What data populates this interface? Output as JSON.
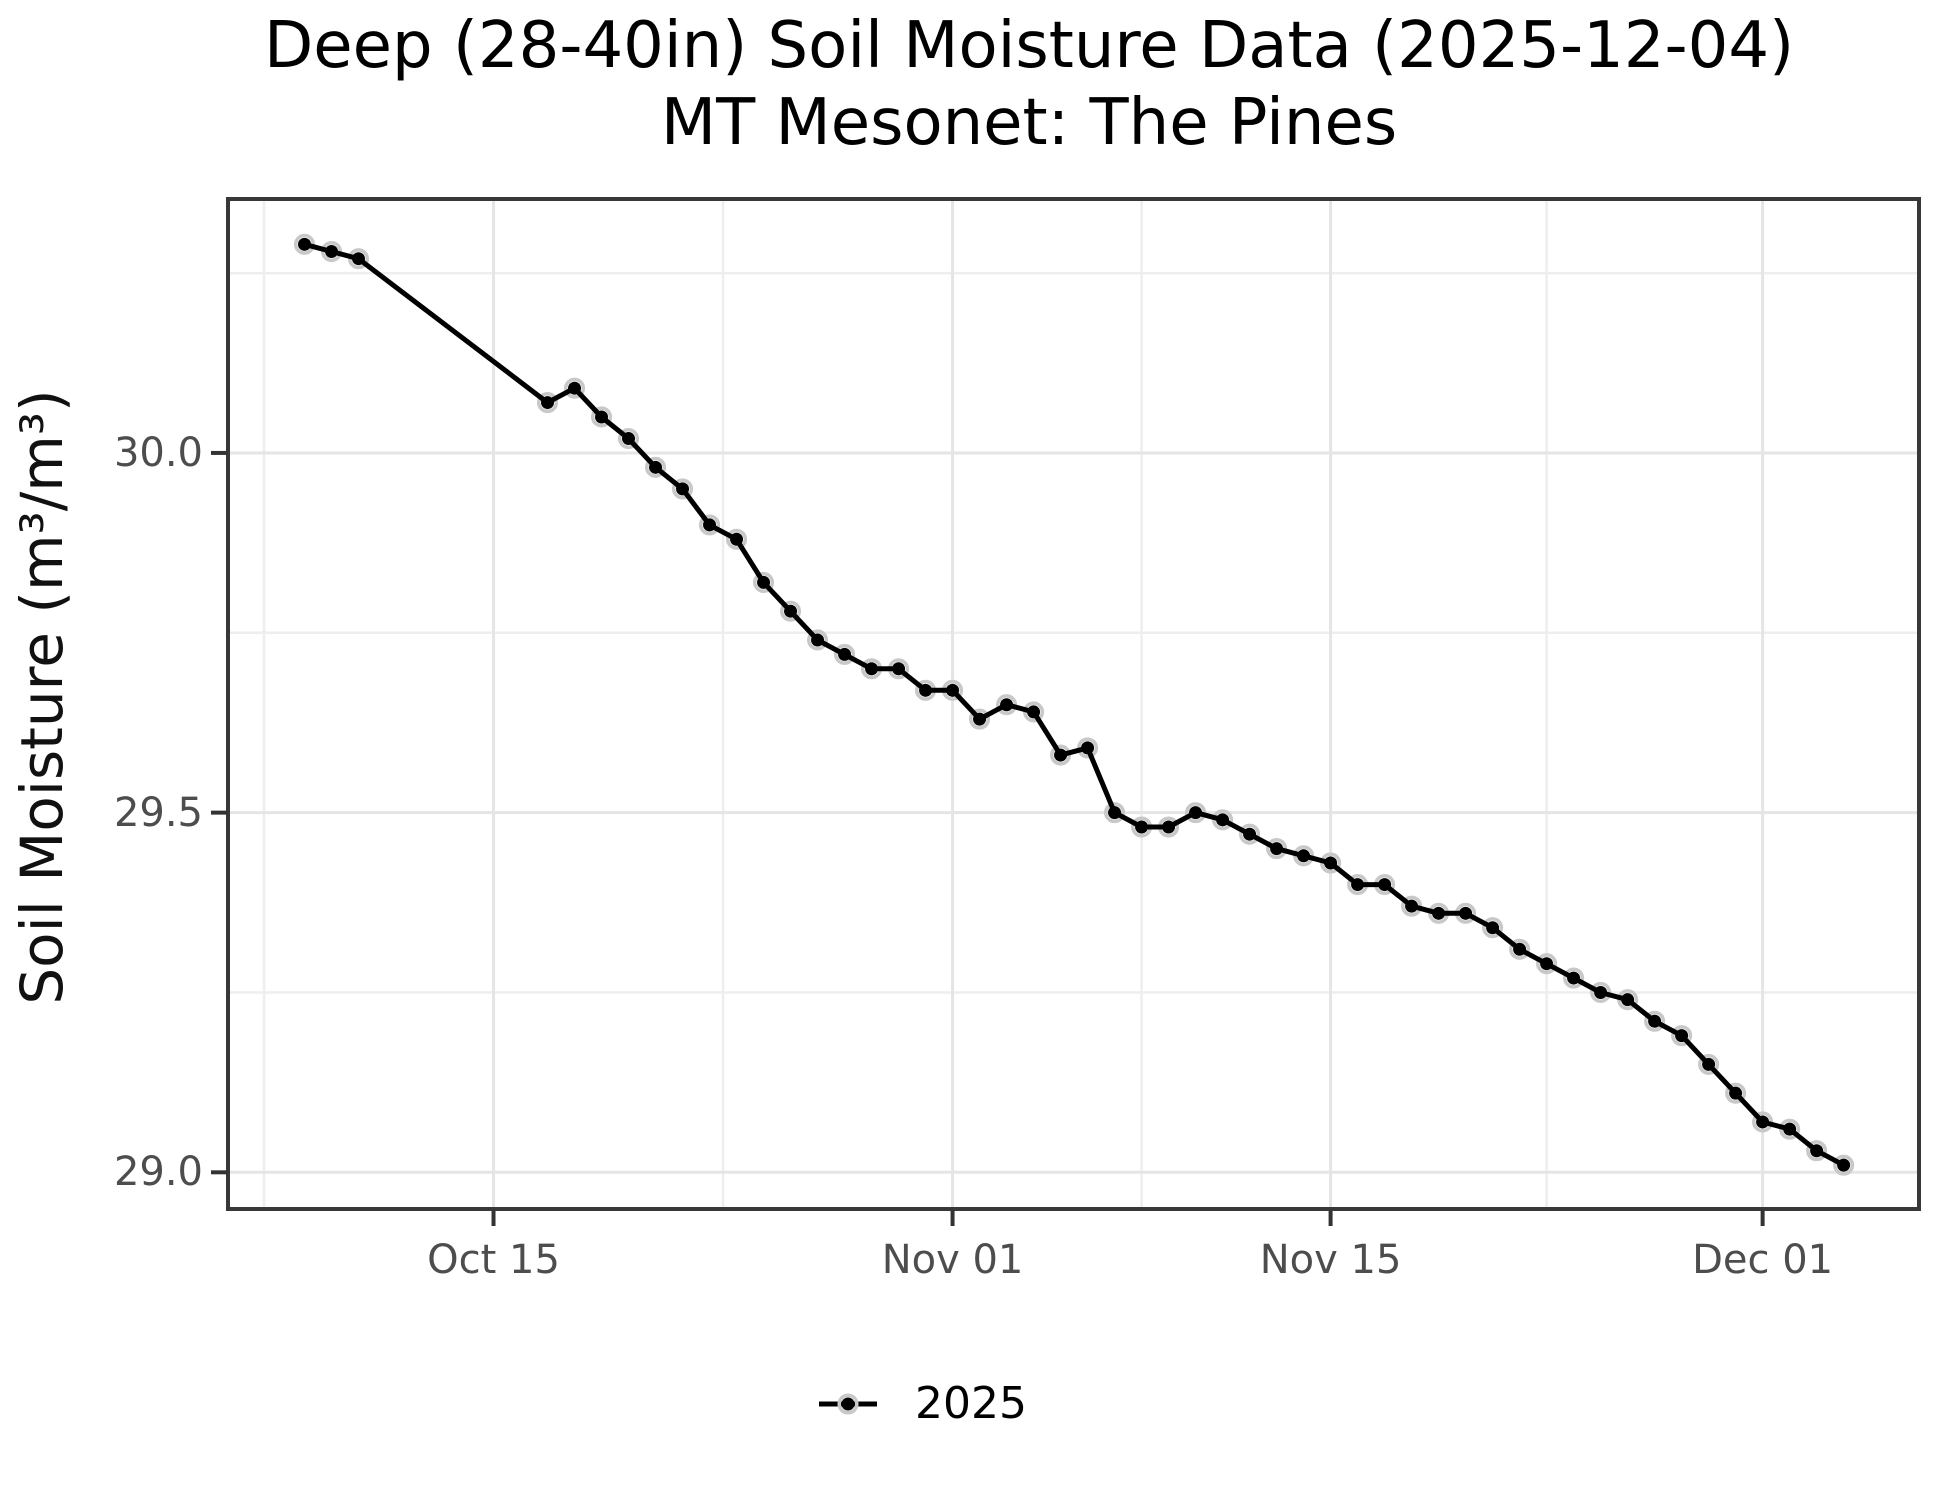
{
  "title": {
    "line1": "Deep (28-40in) Soil Moisture Data (2025-12-04)",
    "line2": "MT Mesonet: The Pines"
  },
  "legend": {
    "label": "2025"
  },
  "colors": {
    "line": "#000000",
    "point": "#000000",
    "point_halo": "#c8c8c8",
    "grid_major": "#e5e5e5",
    "grid_minor": "#eeeeee",
    "panel_border": "#383838",
    "tick_mark": "#333333",
    "tick_text": "#4d4d4d",
    "title_text": "#000000",
    "background": "#ffffff"
  },
  "chart_data": {
    "type": "line",
    "title": "Deep (28-40in) Soil Moisture Data (2025-12-04)",
    "subtitle": "MT Mesonet: The Pines",
    "xlabel": "",
    "ylabel": "Soil Moisture (m³/m³)",
    "legend_position": "bottom",
    "grid": true,
    "y_domain": [
      28.949,
      30.353
    ],
    "x_domain": [
      "2025-10-05T04:00:00Z",
      "2025-12-06T19:00:00Z"
    ],
    "y_ticks": [
      {
        "value": 30.0,
        "label": "30.0"
      },
      {
        "value": 29.5,
        "label": "29.5"
      },
      {
        "value": 29.0,
        "label": "29.0"
      }
    ],
    "y_minor": [
      30.25,
      29.75,
      29.25
    ],
    "x_ticks": [
      {
        "date": "2025-10-15",
        "label": "Oct 15"
      },
      {
        "date": "2025-11-01",
        "label": "Nov 01"
      },
      {
        "date": "2025-11-15",
        "label": "Nov 15"
      },
      {
        "date": "2025-12-01",
        "label": "Dec 01"
      }
    ],
    "x_minor": [
      "2025-10-06T12:00:00Z",
      "2025-10-23T12:00:00Z",
      "2025-11-08T00:00:00Z",
      "2025-11-23T00:00:00Z"
    ],
    "series": [
      {
        "name": "2025",
        "points": [
          [
            "2025-10-08",
            30.29
          ],
          [
            "2025-10-09",
            30.28
          ],
          [
            "2025-10-10",
            30.27
          ],
          [
            "2025-10-17",
            30.07
          ],
          [
            "2025-10-18",
            30.09
          ],
          [
            "2025-10-19",
            30.05
          ],
          [
            "2025-10-20",
            30.02
          ],
          [
            "2025-10-21",
            29.98
          ],
          [
            "2025-10-22",
            29.95
          ],
          [
            "2025-10-23",
            29.9
          ],
          [
            "2025-10-24",
            29.88
          ],
          [
            "2025-10-25",
            29.82
          ],
          [
            "2025-10-26",
            29.78
          ],
          [
            "2025-10-27",
            29.74
          ],
          [
            "2025-10-28",
            29.72
          ],
          [
            "2025-10-29",
            29.7
          ],
          [
            "2025-10-30",
            29.7
          ],
          [
            "2025-10-31",
            29.67
          ],
          [
            "2025-11-01",
            29.67
          ],
          [
            "2025-11-02",
            29.63
          ],
          [
            "2025-11-03",
            29.65
          ],
          [
            "2025-11-04",
            29.64
          ],
          [
            "2025-11-05",
            29.58
          ],
          [
            "2025-11-06",
            29.59
          ],
          [
            "2025-11-07",
            29.5
          ],
          [
            "2025-11-08",
            29.48
          ],
          [
            "2025-11-09",
            29.48
          ],
          [
            "2025-11-10",
            29.5
          ],
          [
            "2025-11-11",
            29.49
          ],
          [
            "2025-11-12",
            29.47
          ],
          [
            "2025-11-13",
            29.45
          ],
          [
            "2025-11-14",
            29.44
          ],
          [
            "2025-11-15",
            29.43
          ],
          [
            "2025-11-16",
            29.4
          ],
          [
            "2025-11-17",
            29.4
          ],
          [
            "2025-11-18",
            29.37
          ],
          [
            "2025-11-19",
            29.36
          ],
          [
            "2025-11-20",
            29.36
          ],
          [
            "2025-11-21",
            29.34
          ],
          [
            "2025-11-22",
            29.31
          ],
          [
            "2025-11-23",
            29.29
          ],
          [
            "2025-11-24",
            29.27
          ],
          [
            "2025-11-25",
            29.25
          ],
          [
            "2025-11-26",
            29.24
          ],
          [
            "2025-11-27",
            29.21
          ],
          [
            "2025-11-28",
            29.19
          ],
          [
            "2025-11-29",
            29.15
          ],
          [
            "2025-11-30",
            29.11
          ],
          [
            "2025-12-01",
            29.07
          ],
          [
            "2025-12-02",
            29.06
          ],
          [
            "2025-12-03",
            29.03
          ],
          [
            "2025-12-04",
            29.01
          ]
        ]
      }
    ]
  }
}
